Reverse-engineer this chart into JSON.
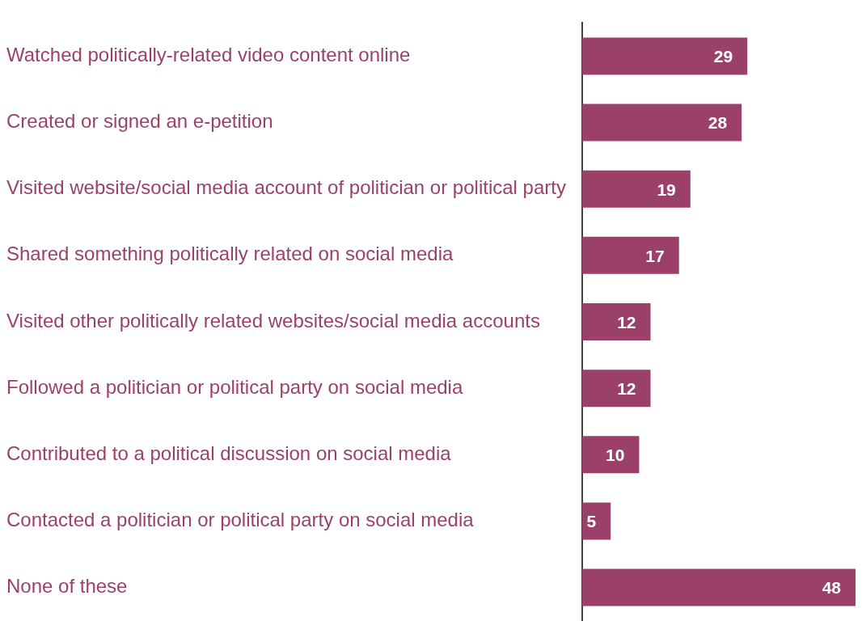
{
  "chart_data": {
    "type": "bar",
    "orientation": "horizontal",
    "categories": [
      "Watched politically-related video content online",
      "Created or signed an e-petition",
      "Visited website/social media account of politician or political party",
      "Shared something politically related on social media",
      "Visited other politically related websites/social media accounts",
      "Followed a politician or political party on social media",
      "Contributed to a political discussion on social media",
      "Contacted a politician or political party on social media",
      "None of these"
    ],
    "values": [
      29,
      28,
      19,
      17,
      12,
      12,
      10,
      5,
      48
    ],
    "color": "#9b4169",
    "xlim": [
      0,
      48
    ],
    "tick_labels": "y",
    "data_labels": true,
    "legend": false
  }
}
